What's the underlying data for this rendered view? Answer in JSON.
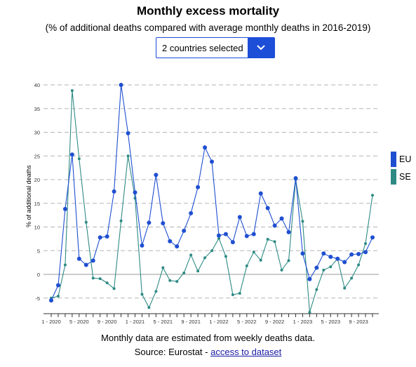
{
  "title": "Monthly excess mortality",
  "subtitle": "(% of additional deaths compared with average monthly deaths in 2016-2019)",
  "dropdown": {
    "label": "2 countries selected"
  },
  "footer": {
    "note": "Monthly data are estimated from weekly deaths data.",
    "source_prefix": "Source: Eurostat - ",
    "link_text": "access to dataset"
  },
  "colors": {
    "EU": "#1f4fd1",
    "SE": "#2e8b84",
    "accent": "#1c4ed8"
  },
  "chart_data": {
    "type": "line",
    "ylabel": "% of additional deaths",
    "xlabel": "",
    "ylim": [
      -7,
      42
    ],
    "yticks": [
      -5,
      0,
      5,
      10,
      15,
      20,
      25,
      30,
      35,
      40
    ],
    "x_tick_labels": [
      "1 - 2020",
      "5 - 2020",
      "9 - 2020",
      "1 - 2021",
      "5 - 2021",
      "9 - 2021",
      "1 - 2022",
      "5 - 2022",
      "9 - 2022",
      "1 - 2023",
      "5 - 2023",
      "9 - 2023"
    ],
    "x_tick_every": 4,
    "grid": "horizontal-dashed",
    "legend_position": "right",
    "series": [
      {
        "name": "EU",
        "values": [
          -5.5,
          -2.3,
          13.8,
          25.3,
          3.3,
          2.0,
          2.9,
          7.8,
          8.0,
          17.5,
          40.0,
          29.8,
          17.3,
          6.1,
          10.9,
          21.0,
          10.8,
          7.0,
          5.9,
          9.2,
          12.9,
          18.4,
          26.8,
          23.8,
          8.2,
          8.5,
          6.8,
          12.1,
          8.1,
          8.5,
          17.1,
          14.0,
          10.3,
          11.8,
          8.9,
          20.3,
          4.4,
          -1.0,
          1.4,
          4.4,
          3.7,
          3.3,
          2.6,
          4.2,
          4.3,
          4.7,
          7.8
        ]
      },
      {
        "name": "SE",
        "values": [
          -5.0,
          -4.6,
          2.0,
          38.8,
          24.4,
          11.0,
          -0.8,
          -0.9,
          -1.8,
          -3.0,
          11.3,
          25.0,
          16.1,
          -4.2,
          -7.0,
          -3.6,
          1.4,
          -1.3,
          -1.5,
          0.3,
          4.1,
          0.7,
          3.5,
          5.0,
          7.6,
          3.8,
          -4.3,
          -4.0,
          1.8,
          4.7,
          3.0,
          7.4,
          6.9,
          0.9,
          2.9,
          20.0,
          11.2,
          -8.0,
          -3.2,
          0.9,
          1.6,
          3.3,
          -2.9,
          -0.8,
          2.0,
          6.5,
          16.7
        ]
      }
    ]
  }
}
